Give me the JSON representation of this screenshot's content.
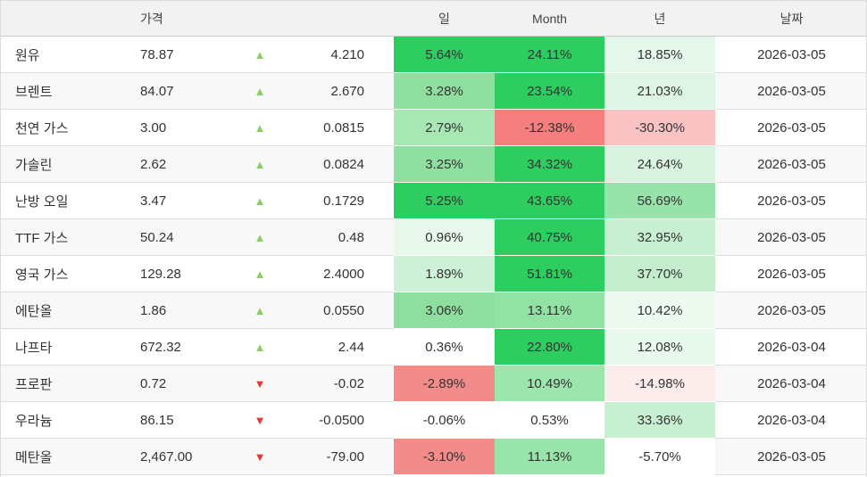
{
  "header": {
    "name": "",
    "price": "가격",
    "day": "일",
    "month": "Month",
    "year": "년",
    "date": "날짜"
  },
  "icons": {
    "up": "▲",
    "down": "▼"
  },
  "colors": {
    "up_arrow": "#89cd65",
    "down_arrow": "#e8352e",
    "strong_green": "#2dcd5f",
    "strong_red": "#f58282",
    "header_bg": "#f2f2f2",
    "stripe_bg": "#f8f8f8",
    "border": "#dddddd",
    "text": "#333333"
  },
  "rows": [
    {
      "name": "원유",
      "price": "78.87",
      "dir": "up",
      "change": "4.210",
      "day": {
        "v": "5.64%",
        "bg": "#2dcd5f"
      },
      "month": {
        "v": "24.11%",
        "bg": "#2dcd5f"
      },
      "year": {
        "v": "18.85%",
        "bg": "#e4f7ea"
      },
      "date": "2026-03-05"
    },
    {
      "name": "브렌트",
      "price": "84.07",
      "dir": "up",
      "change": "2.670",
      "day": {
        "v": "3.28%",
        "bg": "#8fdfa0"
      },
      "month": {
        "v": "23.54%",
        "bg": "#2dcd5f"
      },
      "year": {
        "v": "21.03%",
        "bg": "#def5e5"
      },
      "date": "2026-03-05"
    },
    {
      "name": "천연 가스",
      "price": "3.00",
      "dir": "up",
      "change": "0.0815",
      "day": {
        "v": "2.79%",
        "bg": "#a6e7b3"
      },
      "month": {
        "v": "-12.38%",
        "bg": "#f57e7e"
      },
      "year": {
        "v": "-30.30%",
        "bg": "#f9c3c3"
      },
      "date": "2026-03-05"
    },
    {
      "name": "가솔린",
      "price": "2.62",
      "dir": "up",
      "change": "0.0824",
      "day": {
        "v": "3.25%",
        "bg": "#8fdfa0"
      },
      "month": {
        "v": "34.32%",
        "bg": "#2dcd5f"
      },
      "year": {
        "v": "24.64%",
        "bg": "#d9f3e0"
      },
      "date": "2026-03-05"
    },
    {
      "name": "난방 오일",
      "price": "3.47",
      "dir": "up",
      "change": "0.1729",
      "day": {
        "v": "5.25%",
        "bg": "#2dcd5f"
      },
      "month": {
        "v": "43.65%",
        "bg": "#2dcd5f"
      },
      "year": {
        "v": "56.69%",
        "bg": "#98e3a9"
      },
      "date": "2026-03-05"
    },
    {
      "name": "TTF 가스",
      "price": "50.24",
      "dir": "up",
      "change": "0.48",
      "day": {
        "v": "0.96%",
        "bg": "#e8f8ed"
      },
      "month": {
        "v": "40.75%",
        "bg": "#2dcd5f"
      },
      "year": {
        "v": "32.95%",
        "bg": "#c9efd3"
      },
      "date": "2026-03-05"
    },
    {
      "name": "영국 가스",
      "price": "129.28",
      "dir": "up",
      "change": "2.4000",
      "day": {
        "v": "1.89%",
        "bg": "#cdf1d7"
      },
      "month": {
        "v": "51.81%",
        "bg": "#2dcd5f"
      },
      "year": {
        "v": "37.70%",
        "bg": "#c3edcd"
      },
      "date": "2026-03-05"
    },
    {
      "name": "에탄올",
      "price": "1.86",
      "dir": "up",
      "change": "0.0550",
      "day": {
        "v": "3.06%",
        "bg": "#8edf9f"
      },
      "month": {
        "v": "13.11%",
        "bg": "#93e2a5"
      },
      "year": {
        "v": "10.42%",
        "bg": "#ecfaf0"
      },
      "date": "2026-03-05"
    },
    {
      "name": "나프타",
      "price": "672.32",
      "dir": "up",
      "change": "2.44",
      "day": {
        "v": "0.36%",
        "bg": "#ffffff"
      },
      "month": {
        "v": "22.80%",
        "bg": "#2dcd5f"
      },
      "year": {
        "v": "12.08%",
        "bg": "#e9f9ee"
      },
      "date": "2026-03-04"
    },
    {
      "name": "프로판",
      "price": "0.72",
      "dir": "down",
      "change": "-0.02",
      "day": {
        "v": "-2.89%",
        "bg": "#f48b8b"
      },
      "month": {
        "v": "10.49%",
        "bg": "#9ce5ad"
      },
      "year": {
        "v": "-14.98%",
        "bg": "#fdecec"
      },
      "date": "2026-03-04"
    },
    {
      "name": "우라늄",
      "price": "86.15",
      "dir": "down",
      "change": "-0.0500",
      "day": {
        "v": "-0.06%",
        "bg": "#ffffff"
      },
      "month": {
        "v": "0.53%",
        "bg": "#ffffff"
      },
      "year": {
        "v": "33.36%",
        "bg": "#c7efd1"
      },
      "date": "2026-03-04"
    },
    {
      "name": "메탄올",
      "price": "2,467.00",
      "dir": "down",
      "change": "-79.00",
      "day": {
        "v": "-3.10%",
        "bg": "#f48b8b"
      },
      "month": {
        "v": "11.13%",
        "bg": "#99e4aa"
      },
      "year": {
        "v": "-5.70%",
        "bg": "#ffffff"
      },
      "date": "2026-03-05"
    }
  ]
}
